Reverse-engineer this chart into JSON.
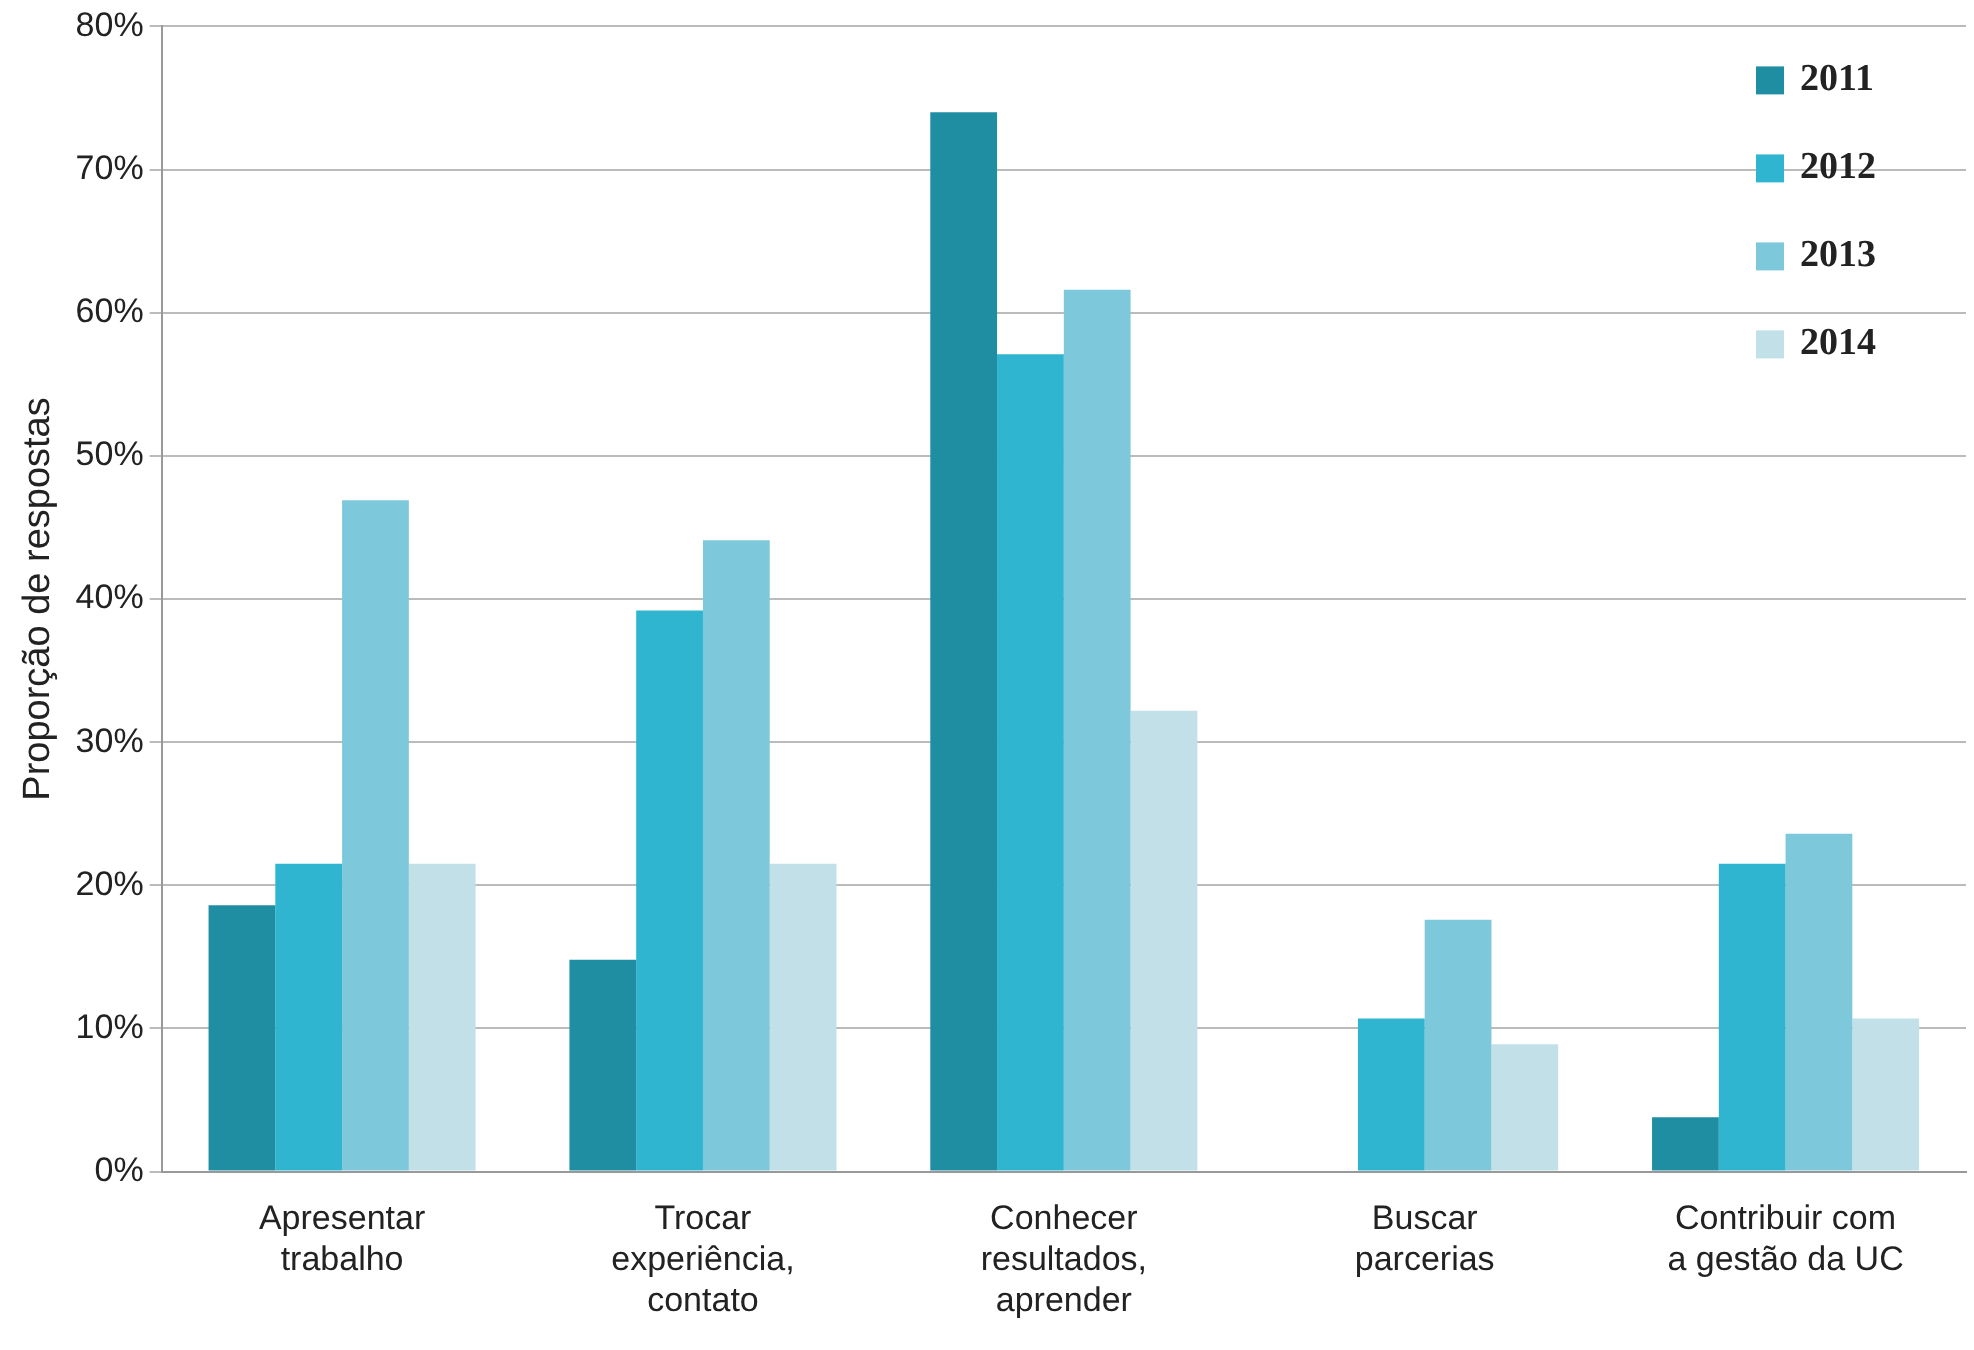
{
  "chart_data": {
    "type": "bar",
    "ylabel": "Proporção de respostas",
    "categories": [
      "Apresentar trabalho",
      "Trocar experiência, contato",
      "Conhecer resultados, aprender",
      "Buscar parcerias",
      "Contribuir com a gestão da UC"
    ],
    "series": [
      {
        "name": "2011",
        "color": "#1f8ea3",
        "values": [
          18.6,
          14.8,
          74.0,
          null,
          3.8
        ]
      },
      {
        "name": "2012",
        "color": "#2fb5d0",
        "values": [
          21.5,
          39.2,
          57.1,
          10.7,
          21.5
        ]
      },
      {
        "name": "2013",
        "color": "#7ec8dc",
        "values": [
          46.9,
          44.1,
          61.6,
          17.6,
          23.6
        ]
      },
      {
        "name": "2014",
        "color": "#c2e0e8",
        "values": [
          21.5,
          21.5,
          32.2,
          8.9,
          10.7
        ]
      }
    ],
    "ylim": [
      0,
      80
    ],
    "yticks": [
      {
        "value": 0,
        "label": "0%"
      },
      {
        "value": 10,
        "label": "10%"
      },
      {
        "value": 20,
        "label": "20%"
      },
      {
        "value": 30,
        "label": "30%"
      },
      {
        "value": 40,
        "label": "40%"
      },
      {
        "value": 50,
        "label": "50%"
      },
      {
        "value": 60,
        "label": "60%"
      },
      {
        "value": 70,
        "label": "70%"
      },
      {
        "value": 80,
        "label": "80%"
      }
    ],
    "grid": "y",
    "legend": "top right"
  }
}
